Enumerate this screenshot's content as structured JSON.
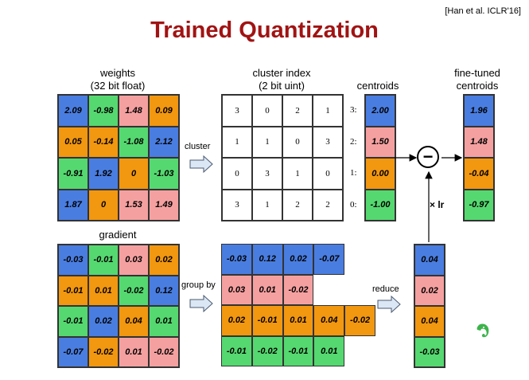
{
  "title": "Trained Quantization",
  "citation": "[Han et al. ICLR'16]",
  "labels": {
    "weights_line1": "weights",
    "weights_line2": "(32 bit float)",
    "cluster_index_line1": "cluster index",
    "cluster_index_line2": "(2 bit uint)",
    "centroids": "centroids",
    "finetuned_line1": "fine-tuned",
    "finetuned_line2": "centroids",
    "gradient": "gradient",
    "cluster": "cluster",
    "group_by": "group by",
    "reduce": "reduce",
    "lr": "× lr",
    "minus": "−"
  },
  "colors": {
    "c0": "#4a7de0",
    "c1": "#f29710",
    "c2": "#f5a0a0",
    "c3": "#55d870",
    "title": "#a11313"
  },
  "weights": [
    [
      {
        "v": "2.09",
        "c": "c0"
      },
      {
        "v": "-0.98",
        "c": "c3"
      },
      {
        "v": "1.48",
        "c": "c2"
      },
      {
        "v": "0.09",
        "c": "c1"
      }
    ],
    [
      {
        "v": "0.05",
        "c": "c1"
      },
      {
        "v": "-0.14",
        "c": "c1"
      },
      {
        "v": "-1.08",
        "c": "c3"
      },
      {
        "v": "2.12",
        "c": "c0"
      }
    ],
    [
      {
        "v": "-0.91",
        "c": "c3"
      },
      {
        "v": "1.92",
        "c": "c0"
      },
      {
        "v": "0",
        "c": "c1"
      },
      {
        "v": "-1.03",
        "c": "c3"
      }
    ],
    [
      {
        "v": "1.87",
        "c": "c0"
      },
      {
        "v": "0",
        "c": "c1"
      },
      {
        "v": "1.53",
        "c": "c2"
      },
      {
        "v": "1.49",
        "c": "c2"
      }
    ]
  ],
  "cluster_index": [
    [
      "3",
      "0",
      "2",
      "1"
    ],
    [
      "1",
      "1",
      "0",
      "3"
    ],
    [
      "0",
      "3",
      "1",
      "0"
    ],
    [
      "3",
      "1",
      "2",
      "2"
    ]
  ],
  "centroids": [
    {
      "idx": "3:",
      "v": "2.00",
      "c": "c0"
    },
    {
      "idx": "2:",
      "v": "1.50",
      "c": "c2"
    },
    {
      "idx": "1:",
      "v": "0.00",
      "c": "c1"
    },
    {
      "idx": "0:",
      "v": "-1.00",
      "c": "c3"
    }
  ],
  "finetuned": [
    {
      "v": "1.96",
      "c": "c0"
    },
    {
      "v": "1.48",
      "c": "c2"
    },
    {
      "v": "-0.04",
      "c": "c1"
    },
    {
      "v": "-0.97",
      "c": "c3"
    }
  ],
  "gradient": [
    [
      {
        "v": "-0.03",
        "c": "c0"
      },
      {
        "v": "-0.01",
        "c": "c3"
      },
      {
        "v": "0.03",
        "c": "c2"
      },
      {
        "v": "0.02",
        "c": "c1"
      }
    ],
    [
      {
        "v": "-0.01",
        "c": "c1"
      },
      {
        "v": "0.01",
        "c": "c1"
      },
      {
        "v": "-0.02",
        "c": "c3"
      },
      {
        "v": "0.12",
        "c": "c0"
      }
    ],
    [
      {
        "v": "-0.01",
        "c": "c3"
      },
      {
        "v": "0.02",
        "c": "c0"
      },
      {
        "v": "0.04",
        "c": "c1"
      },
      {
        "v": "0.01",
        "c": "c3"
      }
    ],
    [
      {
        "v": "-0.07",
        "c": "c0"
      },
      {
        "v": "-0.02",
        "c": "c1"
      },
      {
        "v": "0.01",
        "c": "c2"
      },
      {
        "v": "-0.02",
        "c": "c2"
      }
    ]
  ],
  "grouped": [
    {
      "c": "c0",
      "values": [
        "-0.03",
        "0.12",
        "0.02",
        "-0.07"
      ]
    },
    {
      "c": "c2",
      "values": [
        "0.03",
        "0.01",
        "-0.02"
      ]
    },
    {
      "c": "c1",
      "values": [
        "0.02",
        "-0.01",
        "0.01",
        "0.04",
        "-0.02"
      ]
    },
    {
      "c": "c3",
      "values": [
        "-0.01",
        "-0.02",
        "-0.01",
        "0.01"
      ]
    }
  ],
  "reduced": [
    {
      "v": "0.04",
      "c": "c0"
    },
    {
      "v": "0.02",
      "c": "c2"
    },
    {
      "v": "0.04",
      "c": "c1"
    },
    {
      "v": "-0.03",
      "c": "c3"
    }
  ],
  "logo_icon": "evernote-elephant-icon"
}
